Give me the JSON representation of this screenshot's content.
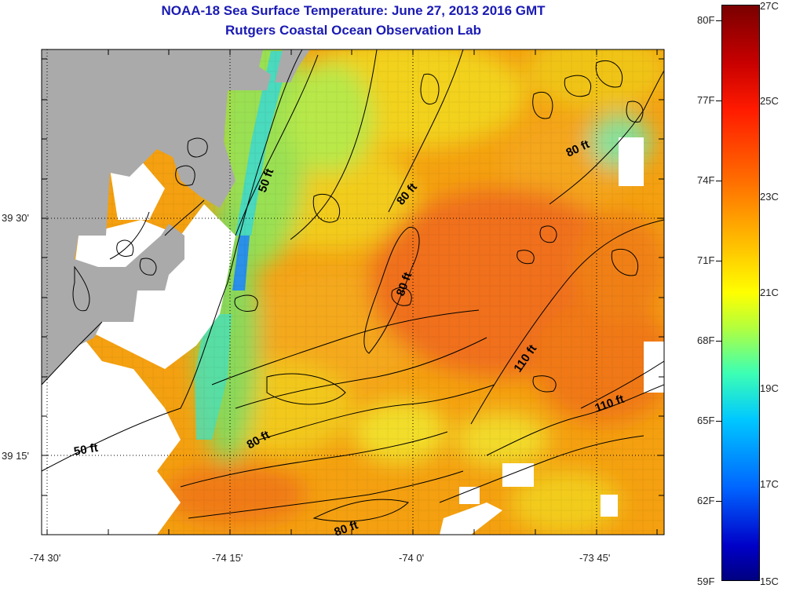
{
  "title": "NOAA-18 Sea Surface Temperature:  June 27, 2013 2016 GMT",
  "subtitle": "Rutgers Coastal Ocean Observation Lab",
  "axes": {
    "lat_labels": [
      "39 30'",
      "39 15'"
    ],
    "lon_labels": [
      "-74 30'",
      "-74 15'",
      "-74 0'",
      "-73 45'"
    ],
    "grid": "dotted"
  },
  "contours": {
    "depth_labels": [
      "50 ft",
      "80 ft",
      "80 ft",
      "80 ft",
      "110 ft",
      "110 ft",
      "50 ft",
      "80 ft",
      "80 ft"
    ]
  },
  "colorbar": {
    "fahrenheit_labels": [
      "80F",
      "77F",
      "74F",
      "71F",
      "68F",
      "65F",
      "62F",
      "59F"
    ],
    "celsius_labels": [
      "27C",
      "25C",
      "23C",
      "21C",
      "19C",
      "17C",
      "15C"
    ],
    "range_c": [
      15,
      27
    ]
  },
  "colors": {
    "land": "#aaaaaa",
    "no_data": "#ffffff",
    "title_text": "#1a1ab4"
  }
}
